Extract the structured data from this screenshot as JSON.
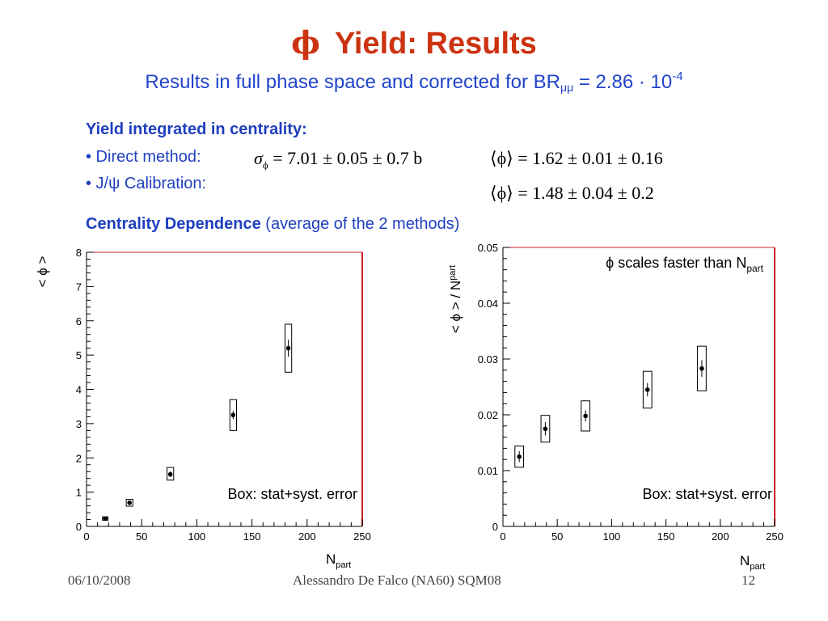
{
  "slide": {
    "title_symbol": "ϕ",
    "title_text": "Yield:  Results",
    "subtitle_text": "Results in full phase space and corrected for BR",
    "subtitle_sub": "μμ",
    "subtitle_value": " = 2.86 · 10",
    "subtitle_exp": "-4",
    "section_heading": "Yield integrated in centrality:",
    "bullet_direct": "• Direct method:",
    "bullet_jpsi": "• J/ψ Calibration:",
    "formula_sigma_lhs": "σ",
    "formula_sigma_sub": "ϕ",
    "formula_sigma_rhs": " = 7.01 ± 0.05 ± 0.7 b",
    "formula_phi_direct": "⟨ϕ⟩ = 1.62 ± 0.01 ± 0.16",
    "formula_phi_jpsi": "⟨ϕ⟩ = 1.48 ± 0.04 ± 0.2",
    "centrality_bold": "Centrality Dependence",
    "centrality_note": " (average of the 2 methods)",
    "footer_date": "06/10/2008",
    "footer_author": "Alessandro De Falco (NA60) SQM08",
    "footer_page": "12"
  },
  "chart_data": [
    {
      "type": "scatter",
      "title": "",
      "xlabel": "N",
      "xlabel_sub": "part",
      "ylabel": "< ϕ >",
      "xlim": [
        0,
        250
      ],
      "ylim": [
        0,
        8
      ],
      "x_ticks": [
        0,
        50,
        100,
        150,
        200,
        250
      ],
      "y_ticks": [
        0,
        1,
        2,
        3,
        4,
        5,
        6,
        7,
        8
      ],
      "annotation": "Box: stat+syst. error",
      "points": [
        {
          "x": 17,
          "y": 0.23,
          "stat": 0.02,
          "box_x": [
            14.5,
            19.5
          ],
          "box_y": [
            0.18,
            0.28
          ]
        },
        {
          "x": 39,
          "y": 0.69,
          "stat": 0.04,
          "box_x": [
            36,
            42
          ],
          "box_y": [
            0.59,
            0.79
          ]
        },
        {
          "x": 76,
          "y": 1.52,
          "stat": 0.08,
          "box_x": [
            73,
            79
          ],
          "box_y": [
            1.35,
            1.72
          ]
        },
        {
          "x": 133,
          "y": 3.25,
          "stat": 0.12,
          "box_x": [
            130,
            136
          ],
          "box_y": [
            2.8,
            3.7
          ]
        },
        {
          "x": 183,
          "y": 5.2,
          "stat": 0.25,
          "box_x": [
            180,
            186
          ],
          "box_y": [
            4.5,
            5.9
          ]
        }
      ]
    },
    {
      "type": "scatter",
      "title": "",
      "xlabel": "N",
      "xlabel_sub": "part",
      "ylabel": "< ϕ > / N",
      "ylabel_sub": "part",
      "xlim": [
        0,
        250
      ],
      "ylim": [
        0,
        0.05
      ],
      "x_ticks": [
        0,
        50,
        100,
        150,
        200,
        250
      ],
      "y_ticks": [
        0,
        0.01,
        0.02,
        0.03,
        0.04,
        0.05
      ],
      "annotation": "Box: stat+syst. error",
      "legend_text": "ϕ scales faster than N",
      "legend_sub": "part",
      "points": [
        {
          "x": 15,
          "y": 0.0125,
          "stat": 0.001,
          "box_x": [
            11,
            19
          ],
          "box_y": [
            0.0106,
            0.0144
          ]
        },
        {
          "x": 39,
          "y": 0.0175,
          "stat": 0.0012,
          "box_x": [
            35,
            43
          ],
          "box_y": [
            0.0151,
            0.0199
          ]
        },
        {
          "x": 76,
          "y": 0.0198,
          "stat": 0.001,
          "box_x": [
            72,
            80
          ],
          "box_y": [
            0.0171,
            0.0225
          ]
        },
        {
          "x": 133,
          "y": 0.0245,
          "stat": 0.0012,
          "box_x": [
            129,
            137
          ],
          "box_y": [
            0.0212,
            0.0278
          ]
        },
        {
          "x": 183,
          "y": 0.0283,
          "stat": 0.0015,
          "box_x": [
            179,
            187
          ],
          "box_y": [
            0.0243,
            0.0323
          ]
        }
      ]
    }
  ]
}
